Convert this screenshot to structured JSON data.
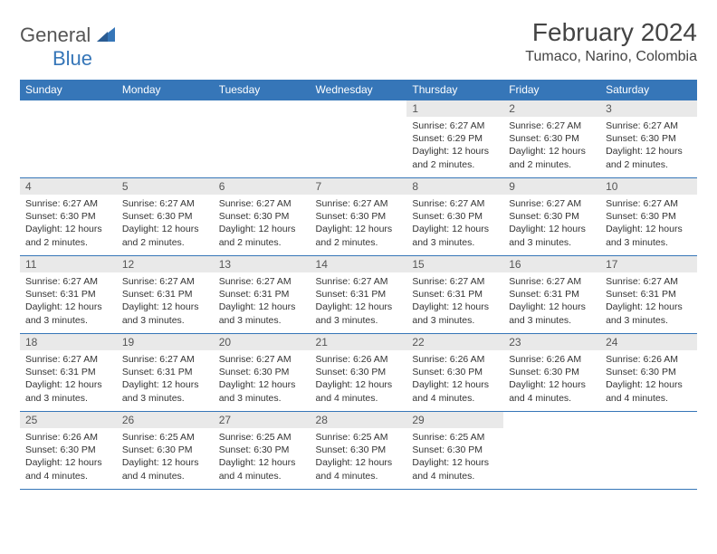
{
  "logo": {
    "word1": "General",
    "word2": "Blue"
  },
  "header": {
    "month_title": "February 2024",
    "location": "Tumaco, Narino, Colombia"
  },
  "colors": {
    "header_bg": "#3676b8",
    "header_text": "#ffffff",
    "daynum_bg": "#e9e9e9",
    "rule": "#3676b8",
    "body_text": "#333333"
  },
  "day_headers": [
    "Sunday",
    "Monday",
    "Tuesday",
    "Wednesday",
    "Thursday",
    "Friday",
    "Saturday"
  ],
  "weeks": [
    [
      null,
      null,
      null,
      null,
      {
        "n": "1",
        "sr": "Sunrise: 6:27 AM",
        "ss": "Sunset: 6:29 PM",
        "dl": "Daylight: 12 hours and 2 minutes."
      },
      {
        "n": "2",
        "sr": "Sunrise: 6:27 AM",
        "ss": "Sunset: 6:30 PM",
        "dl": "Daylight: 12 hours and 2 minutes."
      },
      {
        "n": "3",
        "sr": "Sunrise: 6:27 AM",
        "ss": "Sunset: 6:30 PM",
        "dl": "Daylight: 12 hours and 2 minutes."
      }
    ],
    [
      {
        "n": "4",
        "sr": "Sunrise: 6:27 AM",
        "ss": "Sunset: 6:30 PM",
        "dl": "Daylight: 12 hours and 2 minutes."
      },
      {
        "n": "5",
        "sr": "Sunrise: 6:27 AM",
        "ss": "Sunset: 6:30 PM",
        "dl": "Daylight: 12 hours and 2 minutes."
      },
      {
        "n": "6",
        "sr": "Sunrise: 6:27 AM",
        "ss": "Sunset: 6:30 PM",
        "dl": "Daylight: 12 hours and 2 minutes."
      },
      {
        "n": "7",
        "sr": "Sunrise: 6:27 AM",
        "ss": "Sunset: 6:30 PM",
        "dl": "Daylight: 12 hours and 2 minutes."
      },
      {
        "n": "8",
        "sr": "Sunrise: 6:27 AM",
        "ss": "Sunset: 6:30 PM",
        "dl": "Daylight: 12 hours and 3 minutes."
      },
      {
        "n": "9",
        "sr": "Sunrise: 6:27 AM",
        "ss": "Sunset: 6:30 PM",
        "dl": "Daylight: 12 hours and 3 minutes."
      },
      {
        "n": "10",
        "sr": "Sunrise: 6:27 AM",
        "ss": "Sunset: 6:30 PM",
        "dl": "Daylight: 12 hours and 3 minutes."
      }
    ],
    [
      {
        "n": "11",
        "sr": "Sunrise: 6:27 AM",
        "ss": "Sunset: 6:31 PM",
        "dl": "Daylight: 12 hours and 3 minutes."
      },
      {
        "n": "12",
        "sr": "Sunrise: 6:27 AM",
        "ss": "Sunset: 6:31 PM",
        "dl": "Daylight: 12 hours and 3 minutes."
      },
      {
        "n": "13",
        "sr": "Sunrise: 6:27 AM",
        "ss": "Sunset: 6:31 PM",
        "dl": "Daylight: 12 hours and 3 minutes."
      },
      {
        "n": "14",
        "sr": "Sunrise: 6:27 AM",
        "ss": "Sunset: 6:31 PM",
        "dl": "Daylight: 12 hours and 3 minutes."
      },
      {
        "n": "15",
        "sr": "Sunrise: 6:27 AM",
        "ss": "Sunset: 6:31 PM",
        "dl": "Daylight: 12 hours and 3 minutes."
      },
      {
        "n": "16",
        "sr": "Sunrise: 6:27 AM",
        "ss": "Sunset: 6:31 PM",
        "dl": "Daylight: 12 hours and 3 minutes."
      },
      {
        "n": "17",
        "sr": "Sunrise: 6:27 AM",
        "ss": "Sunset: 6:31 PM",
        "dl": "Daylight: 12 hours and 3 minutes."
      }
    ],
    [
      {
        "n": "18",
        "sr": "Sunrise: 6:27 AM",
        "ss": "Sunset: 6:31 PM",
        "dl": "Daylight: 12 hours and 3 minutes."
      },
      {
        "n": "19",
        "sr": "Sunrise: 6:27 AM",
        "ss": "Sunset: 6:31 PM",
        "dl": "Daylight: 12 hours and 3 minutes."
      },
      {
        "n": "20",
        "sr": "Sunrise: 6:27 AM",
        "ss": "Sunset: 6:30 PM",
        "dl": "Daylight: 12 hours and 3 minutes."
      },
      {
        "n": "21",
        "sr": "Sunrise: 6:26 AM",
        "ss": "Sunset: 6:30 PM",
        "dl": "Daylight: 12 hours and 4 minutes."
      },
      {
        "n": "22",
        "sr": "Sunrise: 6:26 AM",
        "ss": "Sunset: 6:30 PM",
        "dl": "Daylight: 12 hours and 4 minutes."
      },
      {
        "n": "23",
        "sr": "Sunrise: 6:26 AM",
        "ss": "Sunset: 6:30 PM",
        "dl": "Daylight: 12 hours and 4 minutes."
      },
      {
        "n": "24",
        "sr": "Sunrise: 6:26 AM",
        "ss": "Sunset: 6:30 PM",
        "dl": "Daylight: 12 hours and 4 minutes."
      }
    ],
    [
      {
        "n": "25",
        "sr": "Sunrise: 6:26 AM",
        "ss": "Sunset: 6:30 PM",
        "dl": "Daylight: 12 hours and 4 minutes."
      },
      {
        "n": "26",
        "sr": "Sunrise: 6:25 AM",
        "ss": "Sunset: 6:30 PM",
        "dl": "Daylight: 12 hours and 4 minutes."
      },
      {
        "n": "27",
        "sr": "Sunrise: 6:25 AM",
        "ss": "Sunset: 6:30 PM",
        "dl": "Daylight: 12 hours and 4 minutes."
      },
      {
        "n": "28",
        "sr": "Sunrise: 6:25 AM",
        "ss": "Sunset: 6:30 PM",
        "dl": "Daylight: 12 hours and 4 minutes."
      },
      {
        "n": "29",
        "sr": "Sunrise: 6:25 AM",
        "ss": "Sunset: 6:30 PM",
        "dl": "Daylight: 12 hours and 4 minutes."
      },
      null,
      null
    ]
  ]
}
